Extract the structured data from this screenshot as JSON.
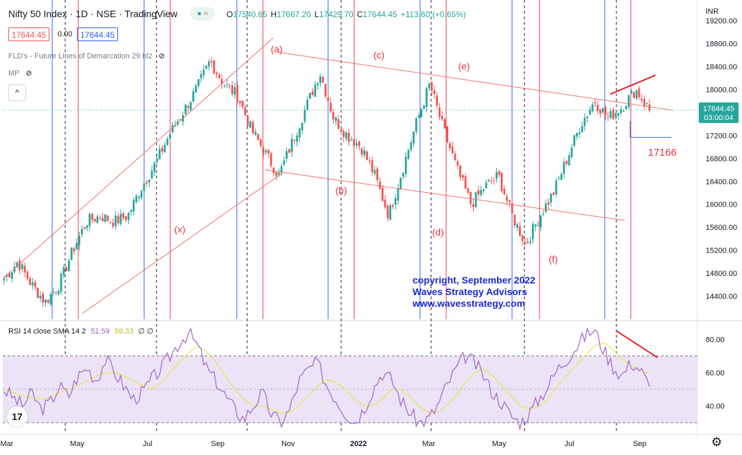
{
  "header": {
    "symbol": "Nifty 50 Index",
    "interval": "1D",
    "exchange": "NSE",
    "source": "TradingView",
    "ohlc": [
      {
        "k": "O",
        "v": "17540.65"
      },
      {
        "k": "H",
        "v": "17667.20"
      },
      {
        "k": "L",
        "v": "17429.70"
      },
      {
        "k": "C",
        "v": "17644.45"
      }
    ],
    "change": "+113.60 (+0.65%)",
    "sell_price": "17644.45",
    "spread": "0.00",
    "buy_price": "17644.45",
    "indicator1": "FLD's - Future Lines of Demarcation 29 hl2",
    "indicator2": "MP",
    "collapse_symbol": "^"
  },
  "rsi_header": {
    "label": "RSI 14 close SMA 14 2",
    "rsi": "51.59",
    "sma": "59.33",
    "extra": "∅ ∅"
  },
  "watermark": {
    "line1": "copyright, September 2022",
    "line2": "Waves Strategy Advisors",
    "line3": "www.wavesstrategy.com"
  },
  "colors": {
    "up": "#26a69a",
    "down": "#ef5350",
    "blue_line": "#2962ff",
    "red_line": "#f23645",
    "rsi": "#9e61c9",
    "rsi_sma": "#e8e849",
    "wave_label": "#e8333a",
    "watermark": "#1a27d4"
  },
  "chart_data": {
    "type": "candlestick",
    "symbol": "Nifty 50 Index",
    "currency": "INR",
    "ylim": [
      14000,
      19500
    ],
    "y_ticks": [
      "19200.00",
      "18800.00",
      "18400.00",
      "18000.00",
      "17600.00",
      "17200.00",
      "16800.00",
      "16400.00",
      "16000.00",
      "15600.00",
      "15200.00",
      "14800.00",
      "14400.00"
    ],
    "x_ticks": [
      "Mar",
      "May",
      "Jul",
      "Sep",
      "Nov",
      "2022",
      "Mar",
      "May",
      "Jul",
      "Sep"
    ],
    "last_price": "17644.45",
    "countdown": "03:00:04",
    "support_level": "17166",
    "price_path": [
      {
        "d": "Mar-2021",
        "v": 14700
      },
      {
        "d": "Mar-2021",
        "v": 15000
      },
      {
        "d": "Apr-2021",
        "v": 14600
      },
      {
        "d": "Apr-2021",
        "v": 14300
      },
      {
        "d": "May-2021",
        "v": 14600
      },
      {
        "d": "May-2021",
        "v": 15200
      },
      {
        "d": "Jun-2021",
        "v": 15700
      },
      {
        "d": "Jun-2021",
        "v": 15800
      },
      {
        "d": "Jul-2021",
        "v": 15700
      },
      {
        "d": "Jul-2021",
        "v": 15800
      },
      {
        "d": "Aug-2021",
        "v": 16300
      },
      {
        "d": "Aug-2021",
        "v": 16700
      },
      {
        "d": "Sep-2021",
        "v": 17200
      },
      {
        "d": "Sep-2021",
        "v": 17600
      },
      {
        "d": "Oct-2021",
        "v": 18000
      },
      {
        "d": "Oct-2021",
        "v": 18500
      },
      {
        "d": "Oct-2021",
        "v": 18100
      },
      {
        "d": "Nov-2021",
        "v": 17900
      },
      {
        "d": "Nov-2021",
        "v": 17300
      },
      {
        "d": "Dec-2021",
        "v": 16900
      },
      {
        "d": "Dec-2021",
        "v": 16500
      },
      {
        "d": "Dec-2021",
        "v": 17100
      },
      {
        "d": "Jan-2022",
        "v": 17700
      },
      {
        "d": "Jan-2022",
        "v": 18300
      },
      {
        "d": "Jan-2022",
        "v": 17500
      },
      {
        "d": "Feb-2022",
        "v": 17200
      },
      {
        "d": "Feb-2022",
        "v": 17000
      },
      {
        "d": "Mar-2022",
        "v": 16500
      },
      {
        "d": "Mar-2022",
        "v": 15800
      },
      {
        "d": "Mar-2022",
        "v": 16600
      },
      {
        "d": "Apr-2022",
        "v": 17400
      },
      {
        "d": "Apr-2022",
        "v": 18100
      },
      {
        "d": "Apr-2022",
        "v": 17300
      },
      {
        "d": "May-2022",
        "v": 16600
      },
      {
        "d": "May-2022",
        "v": 16000
      },
      {
        "d": "May-2022",
        "v": 16300
      },
      {
        "d": "Jun-2022",
        "v": 16500
      },
      {
        "d": "Jun-2022",
        "v": 15800
      },
      {
        "d": "Jun-2022",
        "v": 15300
      },
      {
        "d": "Jul-2022",
        "v": 15800
      },
      {
        "d": "Jul-2022",
        "v": 16200
      },
      {
        "d": "Jul-2022",
        "v": 16800
      },
      {
        "d": "Aug-2022",
        "v": 17400
      },
      {
        "d": "Aug-2022",
        "v": 17800
      },
      {
        "d": "Aug-2022",
        "v": 17500
      },
      {
        "d": "Sep-2022",
        "v": 17700
      },
      {
        "d": "Sep-2022",
        "v": 18000
      },
      {
        "d": "Sep-2022",
        "v": 17644
      }
    ],
    "wave_labels": [
      {
        "label": "(x)",
        "v": 15650
      },
      {
        "label": "(a)",
        "v": 18550
      },
      {
        "label": "(b)",
        "v": 16400
      },
      {
        "label": "(c)",
        "v": 18450
      },
      {
        "label": "(d)",
        "v": 15650
      },
      {
        "label": "(e)",
        "v": 18250
      },
      {
        "label": "(f)",
        "v": 15200
      }
    ],
    "rsi": {
      "ylim": [
        25,
        90
      ],
      "y_ticks": [
        "80.00",
        "60.00",
        "40.00"
      ],
      "bands": [
        30,
        70
      ],
      "rsi_path": [
        50,
        45,
        40,
        48,
        38,
        42,
        52,
        46,
        58,
        63,
        55,
        68,
        60,
        52,
        44,
        48,
        56,
        62,
        70,
        78,
        84,
        76,
        62,
        55,
        46,
        38,
        32,
        40,
        48,
        35,
        30,
        38,
        55,
        62,
        66,
        52,
        44,
        36,
        30,
        38,
        50,
        60,
        56,
        44,
        36,
        30,
        32,
        40,
        52,
        62,
        70,
        66,
        58,
        48,
        42,
        34,
        30,
        36,
        44,
        52,
        62,
        68,
        75,
        82,
        86,
        74,
        64,
        58,
        66,
        62,
        51.59
      ],
      "sma_path": [
        50,
        48,
        46,
        45,
        44,
        45,
        48,
        50,
        52,
        55,
        58,
        60,
        60,
        58,
        55,
        52,
        50,
        54,
        60,
        66,
        72,
        76,
        72,
        66,
        58,
        50,
        44,
        40,
        40,
        38,
        36,
        36,
        40,
        46,
        52,
        56,
        54,
        50,
        44,
        40,
        40,
        44,
        50,
        50,
        46,
        40,
        36,
        36,
        40,
        46,
        54,
        60,
        62,
        58,
        52,
        46,
        40,
        38,
        40,
        44,
        52,
        58,
        64,
        70,
        76,
        78,
        74,
        68,
        64,
        61,
        59.33
      ]
    }
  }
}
